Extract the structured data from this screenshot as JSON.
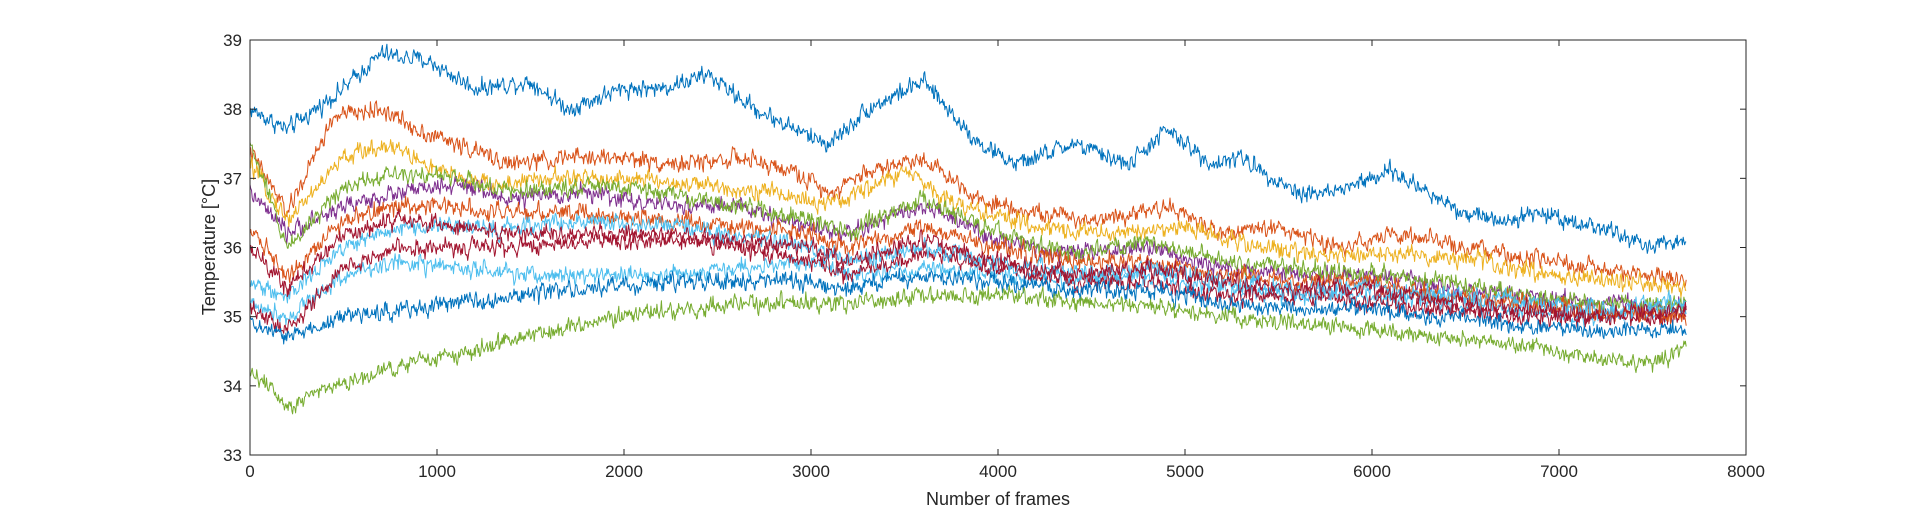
{
  "chart_data": {
    "type": "line",
    "title": "",
    "xlabel": "Number of frames",
    "ylabel": "Temperature [°C]",
    "xlim": [
      0,
      8000
    ],
    "ylim": [
      33,
      39
    ],
    "xticks": [
      0,
      1000,
      2000,
      3000,
      4000,
      5000,
      6000,
      7000,
      8000
    ],
    "yticks": [
      33,
      34,
      35,
      36,
      37,
      38,
      39
    ],
    "xtick_labels": [
      "0",
      "1000",
      "2000",
      "3000",
      "4000",
      "5000",
      "6000",
      "7000",
      "8000"
    ],
    "ytick_labels": [
      "33",
      "34",
      "35",
      "36",
      "37",
      "38",
      "39"
    ],
    "grid": false,
    "legend": "none",
    "noise_std": 0.06,
    "series": [
      {
        "color": "#0072BD",
        "x": [
          0,
          200,
          500,
          700,
          950,
          1200,
          1500,
          1700,
          2000,
          2200,
          2450,
          2700,
          3000,
          3100,
          3300,
          3600,
          3900,
          4100,
          4400,
          4700,
          4900,
          5150,
          5300,
          5600,
          5800,
          6100,
          6500,
          6700,
          6900,
          7200,
          7500,
          7680
        ],
        "y": [
          38.0,
          37.7,
          38.3,
          38.8,
          38.7,
          38.3,
          38.4,
          38.0,
          38.3,
          38.3,
          38.5,
          38.0,
          37.6,
          37.5,
          38.0,
          38.4,
          37.5,
          37.2,
          37.5,
          37.2,
          37.7,
          37.2,
          37.3,
          36.8,
          36.8,
          37.1,
          36.5,
          36.4,
          36.5,
          36.3,
          36.0,
          36.1
        ]
      },
      {
        "color": "#D95319",
        "x": [
          0,
          200,
          450,
          700,
          900,
          1100,
          1400,
          1700,
          2000,
          2300,
          2600,
          2900,
          3100,
          3300,
          3600,
          3900,
          4200,
          4500,
          4900,
          5200,
          5500,
          5800,
          6100,
          6500,
          6900,
          7200,
          7500,
          7680
        ],
        "y": [
          37.4,
          36.5,
          37.9,
          38.0,
          37.7,
          37.5,
          37.2,
          37.3,
          37.3,
          37.2,
          37.3,
          37.1,
          36.8,
          37.1,
          37.3,
          36.7,
          36.5,
          36.4,
          36.6,
          36.2,
          36.3,
          36.0,
          36.2,
          36.0,
          35.8,
          35.7,
          35.6,
          35.5
        ]
      },
      {
        "color": "#EDB120",
        "x": [
          0,
          200,
          500,
          750,
          1000,
          1300,
          1600,
          2000,
          2400,
          2800,
          3100,
          3500,
          3800,
          4200,
          4600,
          5000,
          5400,
          5800,
          6200,
          6600,
          7000,
          7300,
          7680
        ],
        "y": [
          37.2,
          36.4,
          37.3,
          37.5,
          37.1,
          36.9,
          37.0,
          37.0,
          36.9,
          36.8,
          36.6,
          37.1,
          36.6,
          36.3,
          36.2,
          36.3,
          36.0,
          35.9,
          35.9,
          35.8,
          35.6,
          35.5,
          35.4
        ]
      },
      {
        "color": "#7E2F8E",
        "x": [
          0,
          200,
          500,
          800,
          1100,
          1400,
          1800,
          2200,
          2600,
          3000,
          3200,
          3600,
          4000,
          4400,
          4800,
          5200,
          5600,
          6000,
          6400,
          6800,
          7200,
          7680
        ],
        "y": [
          36.8,
          36.2,
          36.6,
          36.8,
          36.9,
          36.7,
          36.8,
          36.6,
          36.6,
          36.3,
          36.2,
          36.6,
          36.1,
          35.9,
          36.0,
          35.7,
          35.6,
          35.6,
          35.4,
          35.3,
          35.2,
          35.1
        ]
      },
      {
        "color": "#77AC30",
        "x": [
          0,
          200,
          500,
          800,
          1100,
          1400,
          1800,
          2200,
          2600,
          3000,
          3200,
          3600,
          4000,
          4400,
          4800,
          5200,
          5600,
          6000,
          6400,
          6800,
          7200,
          7680
        ],
        "y": [
          37.5,
          36.0,
          36.9,
          37.1,
          37.0,
          36.8,
          36.9,
          36.8,
          36.6,
          36.4,
          36.2,
          36.7,
          36.2,
          35.9,
          36.1,
          35.8,
          35.7,
          35.6,
          35.5,
          35.3,
          35.2,
          35.2
        ]
      },
      {
        "color": "#4DBEEE",
        "x": [
          0,
          200,
          500,
          800,
          1100,
          1400,
          1800,
          2200,
          2600,
          3000,
          3200,
          3600,
          4000,
          4400,
          4800,
          5200,
          5600,
          6000,
          6400,
          6800,
          7200,
          7680
        ],
        "y": [
          35.2,
          35.0,
          35.6,
          35.8,
          35.7,
          35.6,
          35.6,
          35.6,
          35.7,
          35.8,
          35.6,
          35.7,
          35.6,
          35.5,
          35.6,
          35.4,
          35.3,
          35.3,
          35.2,
          35.1,
          35.0,
          35.1
        ]
      },
      {
        "color": "#A2142F",
        "x": [
          0,
          200,
          500,
          800,
          1100,
          1400,
          1800,
          2200,
          2600,
          3000,
          3200,
          3600,
          4000,
          4400,
          4800,
          5200,
          5600,
          6000,
          6400,
          6800,
          7200,
          7680
        ],
        "y": [
          35.1,
          34.8,
          35.7,
          36.0,
          36.0,
          36.0,
          36.1,
          36.1,
          36.0,
          35.8,
          35.6,
          35.9,
          35.7,
          35.5,
          35.5,
          35.3,
          35.3,
          35.2,
          35.1,
          35.0,
          35.0,
          35.0
        ]
      },
      {
        "color": "#0072BD",
        "x": [
          0,
          200,
          500,
          800,
          1100,
          1400,
          1800,
          2200,
          2600,
          3000,
          3200,
          3600,
          4000,
          4400,
          4800,
          5200,
          5600,
          6000,
          6400,
          6800,
          7200,
          7680
        ],
        "y": [
          34.9,
          34.7,
          35.0,
          35.1,
          35.2,
          35.3,
          35.4,
          35.5,
          35.5,
          35.5,
          35.4,
          35.6,
          35.5,
          35.4,
          35.4,
          35.2,
          35.1,
          35.1,
          35.0,
          34.9,
          34.8,
          34.8
        ]
      },
      {
        "color": "#D95319",
        "x": [
          0,
          200,
          500,
          800,
          1100,
          1400,
          1800,
          2200,
          2600,
          3000,
          3200,
          3600,
          4000,
          4400,
          4800,
          5200,
          5600,
          6000,
          6400,
          6800,
          7200,
          7680
        ],
        "y": [
          36.3,
          35.6,
          36.4,
          36.6,
          36.6,
          36.5,
          36.5,
          36.4,
          36.3,
          36.2,
          36.0,
          36.3,
          36.0,
          35.8,
          35.8,
          35.6,
          35.5,
          35.5,
          35.3,
          35.2,
          35.1,
          35.0
        ]
      },
      {
        "color": "#77AC30",
        "x": [
          0,
          150,
          200,
          400,
          600,
          800,
          1000,
          1200,
          1400,
          1600,
          1800,
          2000,
          2200,
          2400,
          2600,
          2800,
          3000,
          3200,
          3500,
          3800,
          4100,
          4400,
          4800,
          5200,
          5600,
          6000,
          6400,
          6800,
          7200,
          7500,
          7680
        ],
        "y": [
          34.2,
          33.9,
          33.7,
          34.0,
          34.1,
          34.3,
          34.4,
          34.5,
          34.7,
          34.8,
          34.9,
          35.0,
          35.1,
          35.1,
          35.2,
          35.2,
          35.2,
          35.2,
          35.3,
          35.3,
          35.3,
          35.2,
          35.2,
          35.0,
          34.9,
          34.8,
          34.7,
          34.6,
          34.4,
          34.3,
          34.6
        ]
      },
      {
        "color": "#4DBEEE",
        "x": [
          0,
          200,
          500,
          800,
          1100,
          1400,
          1800,
          2200,
          2600,
          3000,
          3200,
          3600,
          4000,
          4400,
          4800,
          5200,
          5600,
          6000,
          6400,
          6800,
          7200,
          7680
        ],
        "y": [
          35.5,
          35.3,
          36.0,
          36.3,
          36.3,
          36.3,
          36.4,
          36.3,
          36.2,
          36.0,
          35.8,
          36.0,
          35.8,
          35.6,
          35.7,
          35.5,
          35.4,
          35.4,
          35.3,
          35.2,
          35.1,
          35.2
        ]
      },
      {
        "color": "#A2142F",
        "x": [
          0,
          200,
          500,
          800,
          1100,
          1400,
          1800,
          2200,
          2600,
          3000,
          3200,
          3600,
          4000,
          4400,
          4800,
          5200,
          5600,
          6000,
          6400,
          6800,
          7200,
          7680
        ],
        "y": [
          36.0,
          35.4,
          36.2,
          36.4,
          36.3,
          36.2,
          36.2,
          36.2,
          36.1,
          36.0,
          35.8,
          36.1,
          35.8,
          35.6,
          35.7,
          35.5,
          35.4,
          35.4,
          35.2,
          35.1,
          35.0,
          35.1
        ]
      }
    ]
  }
}
